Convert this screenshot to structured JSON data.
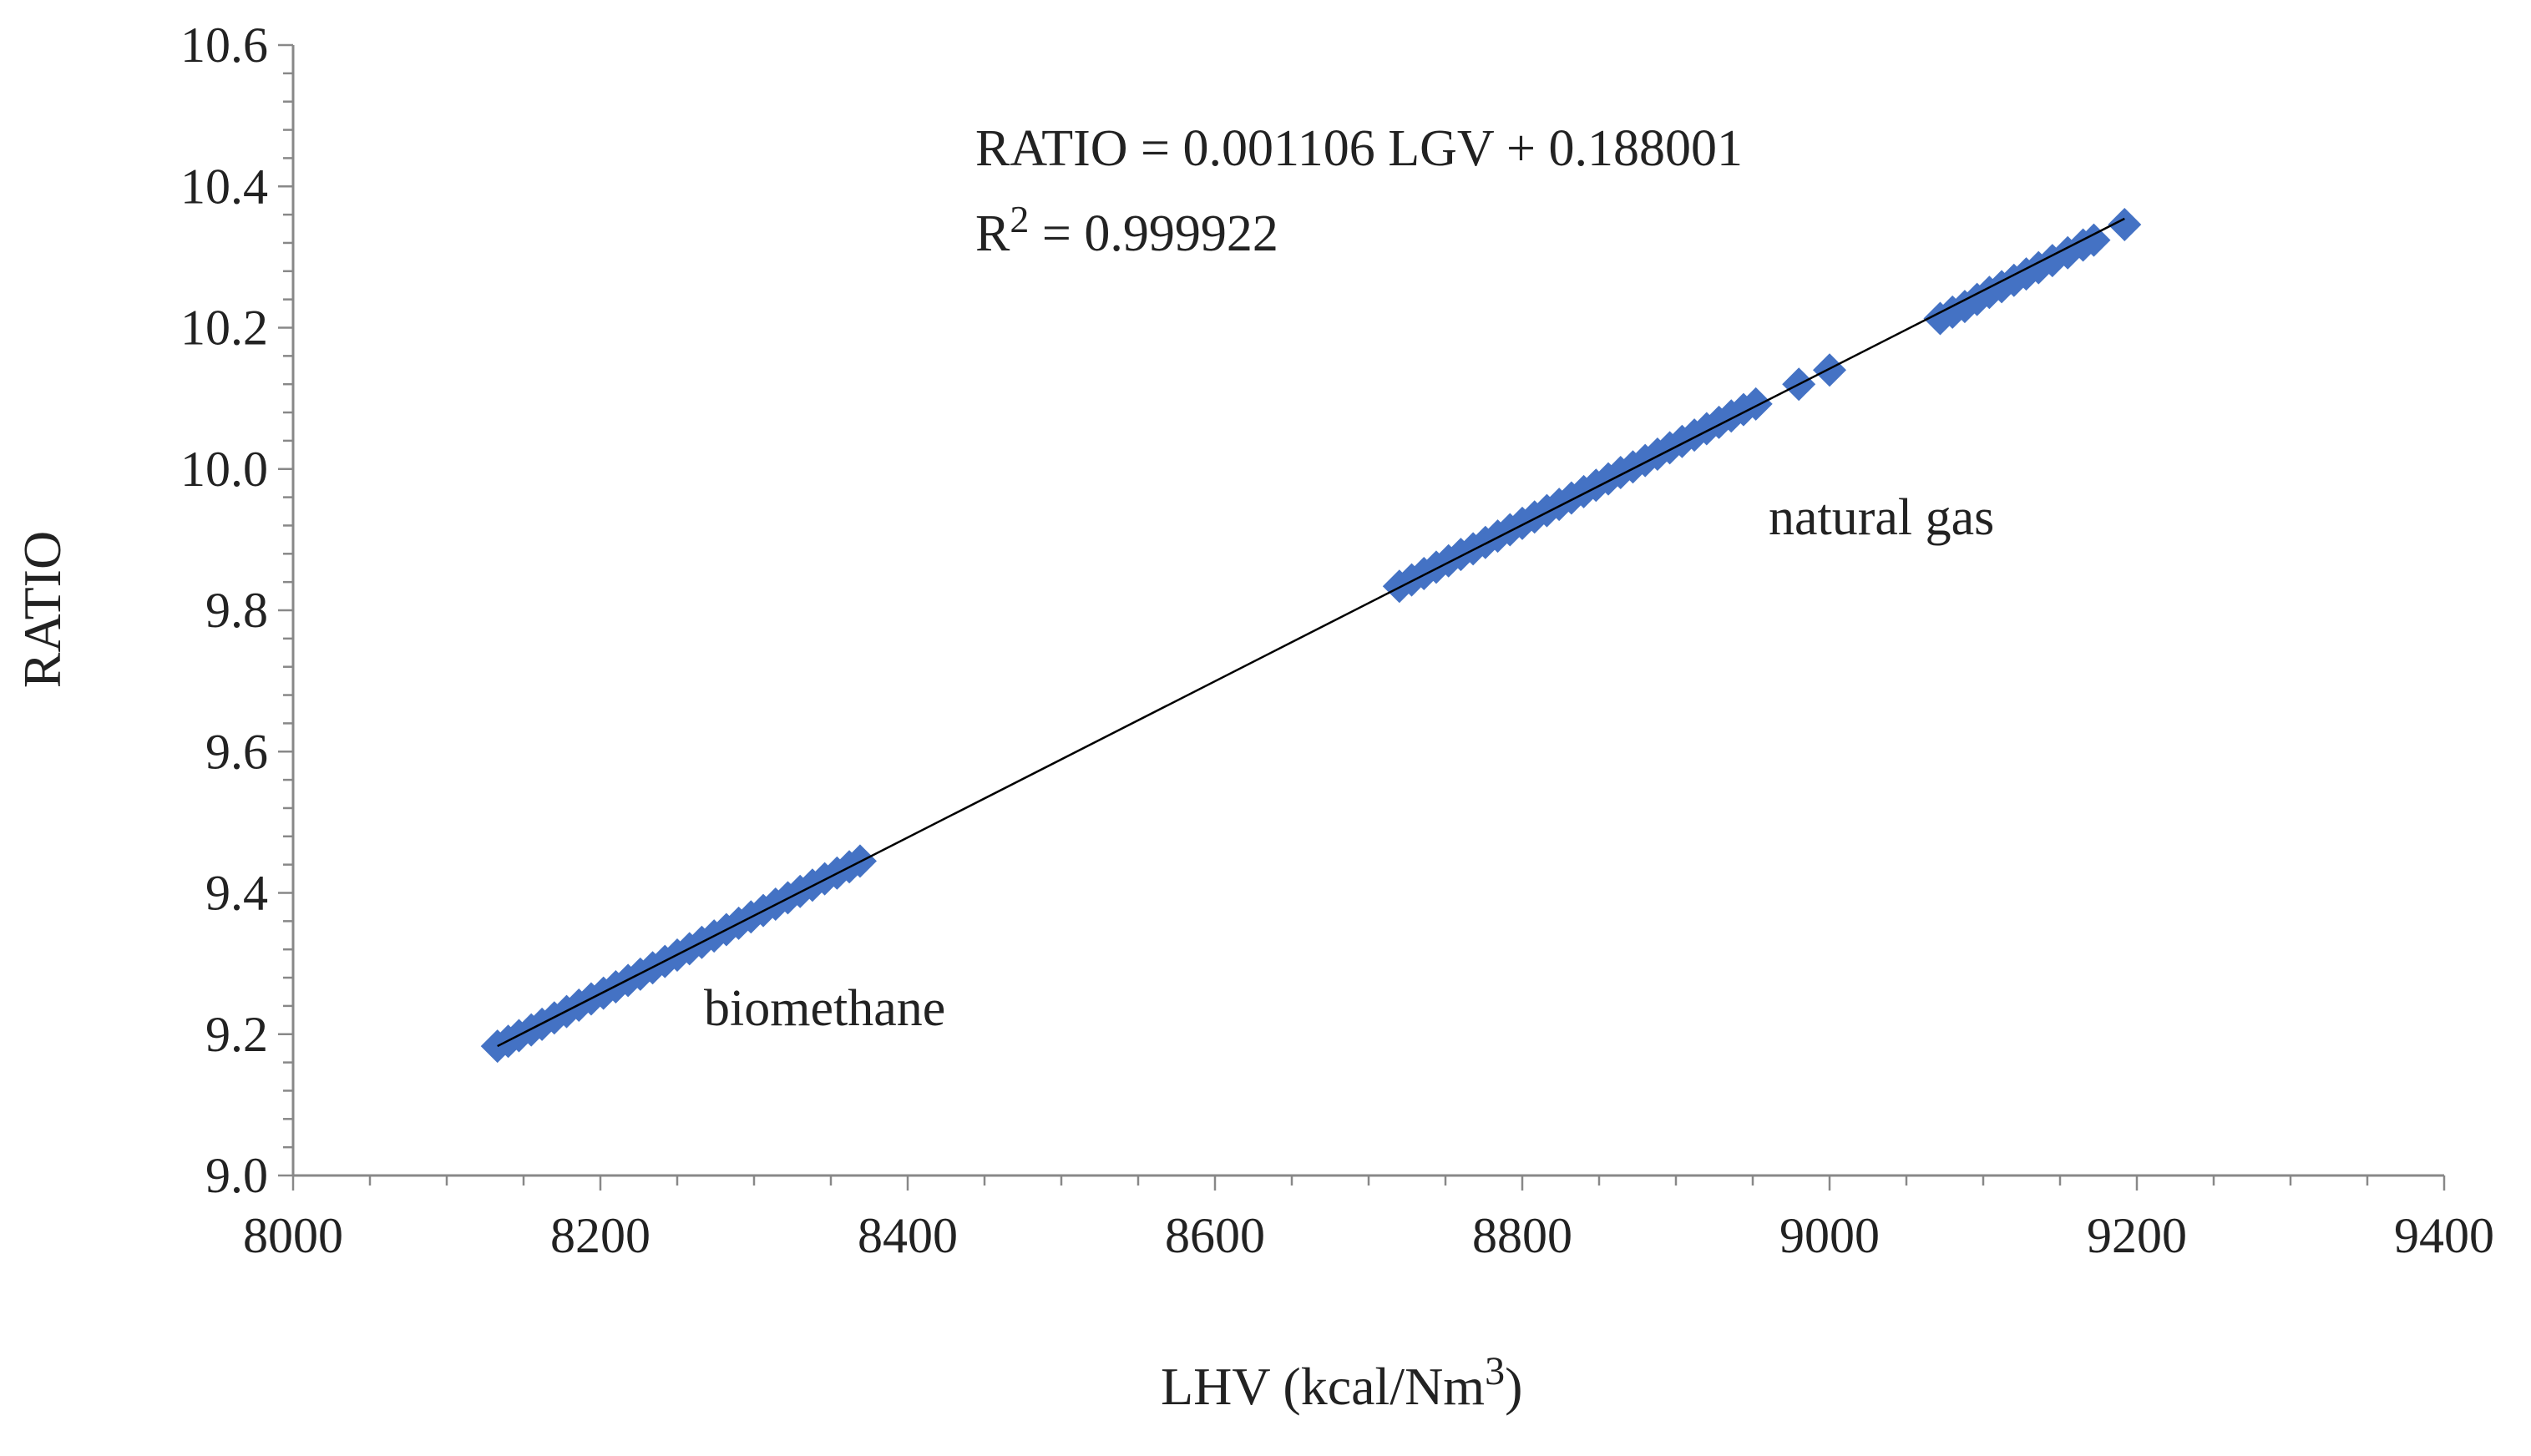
{
  "chart_data": {
    "type": "scatter",
    "title": "",
    "xlabel": "LHV (kcal/Nm",
    "xlabel_superscript": "3",
    "xlabel_suffix": ")",
    "ylabel": "RATIO",
    "xlim": [
      8000,
      9400
    ],
    "ylim": [
      9.0,
      10.6
    ],
    "x_major_ticks": [
      8000,
      8200,
      8400,
      8600,
      8800,
      9000,
      9200,
      9400
    ],
    "x_tick_labels": [
      "8000",
      "8200",
      "8400",
      "8600",
      "8800",
      "9000",
      "9200",
      "9400"
    ],
    "x_minor_step": 50,
    "y_major_ticks": [
      9.0,
      9.2,
      9.4,
      9.6,
      9.8,
      10.0,
      10.2,
      10.4,
      10.6
    ],
    "y_tick_labels": [
      "9.0",
      "9.2",
      "9.4",
      "9.6",
      "9.8",
      "10.0",
      "10.2",
      "10.4",
      "10.6"
    ],
    "y_minor_step": 0.04,
    "grid": false,
    "legend": "none",
    "series": [
      {
        "name": "data",
        "marker": "diamond",
        "color": "#4472C4",
        "points": [
          [
            8133,
            9.183
          ],
          [
            8140,
            9.19
          ],
          [
            8147,
            9.198
          ],
          [
            8155,
            9.206
          ],
          [
            8162,
            9.214
          ],
          [
            8170,
            9.223
          ],
          [
            8178,
            9.232
          ],
          [
            8186,
            9.241
          ],
          [
            8194,
            9.25
          ],
          [
            8202,
            9.258
          ],
          [
            8210,
            9.267
          ],
          [
            8218,
            9.276
          ],
          [
            8226,
            9.285
          ],
          [
            8234,
            9.294
          ],
          [
            8242,
            9.303
          ],
          [
            8250,
            9.312
          ],
          [
            8258,
            9.321
          ],
          [
            8266,
            9.33
          ],
          [
            8274,
            9.339
          ],
          [
            8282,
            9.348
          ],
          [
            8290,
            9.357
          ],
          [
            8298,
            9.366
          ],
          [
            8306,
            9.375
          ],
          [
            8314,
            9.384
          ],
          [
            8322,
            9.393
          ],
          [
            8330,
            9.402
          ],
          [
            8338,
            9.411
          ],
          [
            8346,
            9.42
          ],
          [
            8354,
            9.428
          ],
          [
            8362,
            9.437
          ],
          [
            8369,
            9.445
          ],
          [
            8720,
            9.834
          ],
          [
            8728,
            9.843
          ],
          [
            8736,
            9.852
          ],
          [
            8744,
            9.861
          ],
          [
            8752,
            9.87
          ],
          [
            8760,
            9.879
          ],
          [
            8768,
            9.887
          ],
          [
            8776,
            9.896
          ],
          [
            8784,
            9.905
          ],
          [
            8792,
            9.914
          ],
          [
            8800,
            9.923
          ],
          [
            8808,
            9.932
          ],
          [
            8816,
            9.941
          ],
          [
            8824,
            9.95
          ],
          [
            8832,
            9.959
          ],
          [
            8840,
            9.968
          ],
          [
            8848,
            9.977
          ],
          [
            8856,
            9.986
          ],
          [
            8864,
            9.995
          ],
          [
            8872,
            10.003
          ],
          [
            8880,
            10.012
          ],
          [
            8888,
            10.021
          ],
          [
            8896,
            10.03
          ],
          [
            8904,
            10.039
          ],
          [
            8912,
            10.048
          ],
          [
            8920,
            10.057
          ],
          [
            8928,
            10.066
          ],
          [
            8936,
            10.075
          ],
          [
            8944,
            10.084
          ],
          [
            8952,
            10.092
          ],
          [
            8980,
            10.12
          ],
          [
            9000,
            10.14
          ],
          [
            9072,
            10.213
          ],
          [
            9080,
            10.222
          ],
          [
            9088,
            10.23
          ],
          [
            9096,
            10.24
          ],
          [
            9104,
            10.25
          ],
          [
            9112,
            10.258
          ],
          [
            9120,
            10.267
          ],
          [
            9128,
            10.276
          ],
          [
            9136,
            10.285
          ],
          [
            9145,
            10.295
          ],
          [
            9155,
            10.306
          ],
          [
            9165,
            10.317
          ],
          [
            9172,
            10.324
          ],
          [
            9192,
            10.346
          ]
        ]
      }
    ],
    "trendline": {
      "slope": 0.001106,
      "intercept": 0.188001,
      "x_start": 8133,
      "x_end": 9192,
      "color": "#000000"
    },
    "annotations": {
      "equation": "RATIO = 0.001106 LGV + 0.188001",
      "r2_prefix": "R",
      "r2_superscript": "2",
      "r2_suffix": " = 0.999922",
      "natural_gas": "natural gas",
      "biomethane": "biomethane"
    }
  }
}
